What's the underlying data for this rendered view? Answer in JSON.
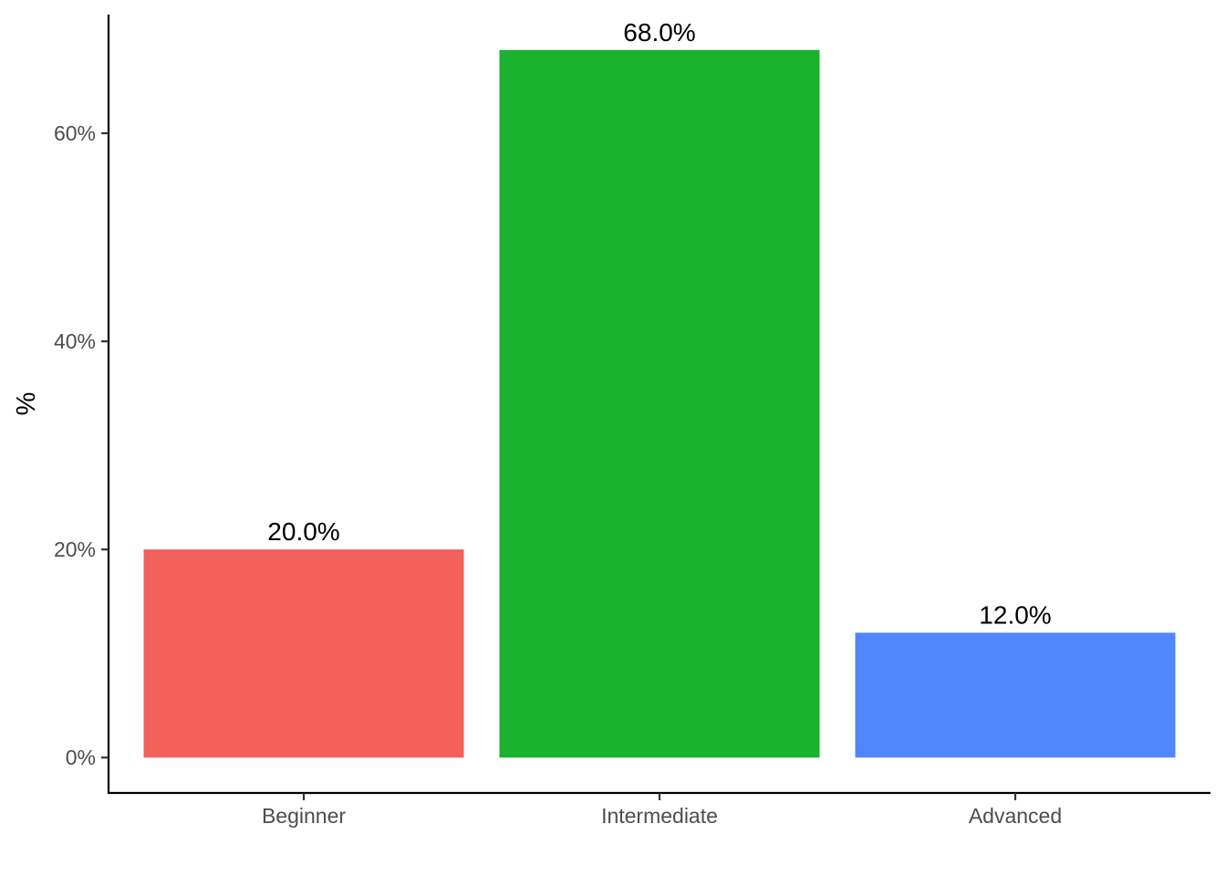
{
  "chart_data": {
    "type": "bar",
    "title": "",
    "xlabel": "",
    "ylabel": "%",
    "categories": [
      "Beginner",
      "Intermediate",
      "Advanced"
    ],
    "values": [
      20.0,
      68.0,
      12.0
    ],
    "data_labels": [
      "20.0%",
      "68.0%",
      "12.0%"
    ],
    "colors": [
      "#F4605A",
      "#1AB22E",
      "#5087FF"
    ],
    "ylim": [
      -3.4,
      71.4
    ],
    "y_ticks": [
      0,
      20,
      40,
      60
    ],
    "y_tick_labels": [
      "0%",
      "20%",
      "40%",
      "60%"
    ],
    "grid": false,
    "legend": "none"
  }
}
